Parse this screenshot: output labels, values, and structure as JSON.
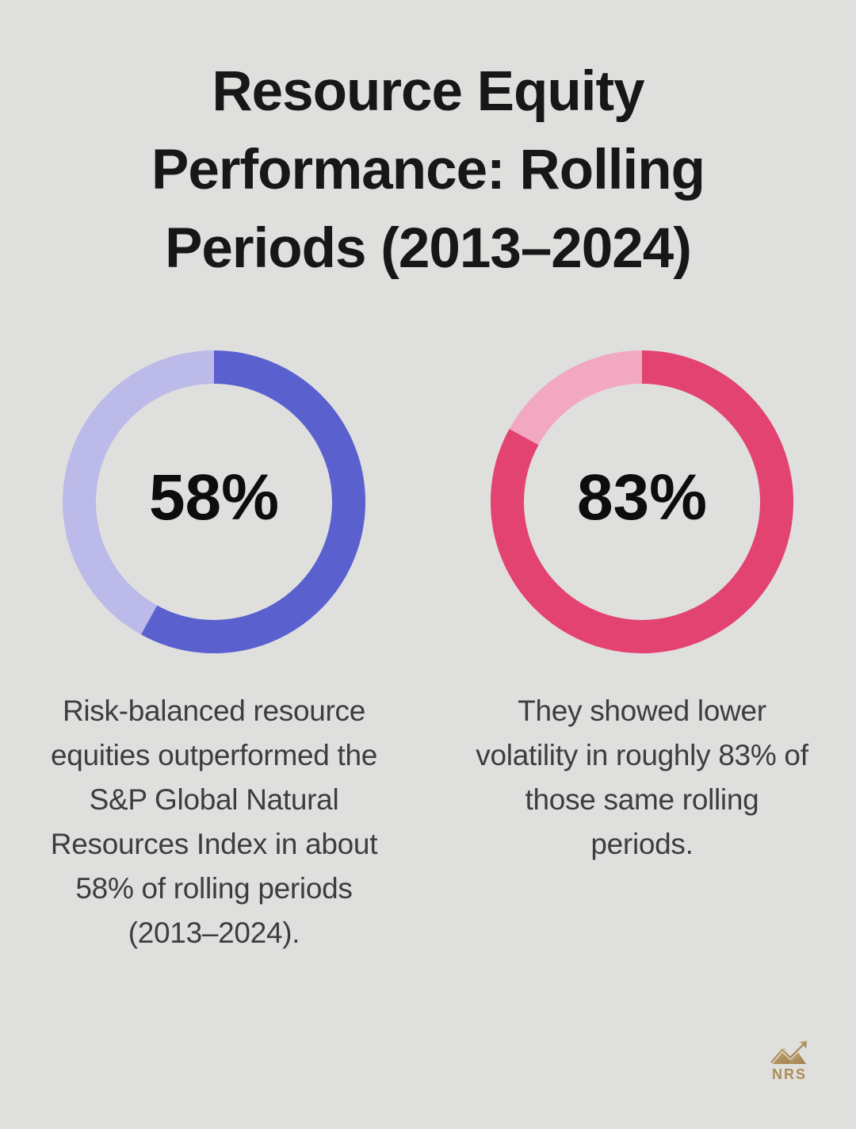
{
  "page": {
    "background_color": "#dfe0de"
  },
  "header": {
    "title_lines": [
      "Resource Equity",
      "Performance: Rolling",
      "Periods (2013–2024)"
    ]
  },
  "chart_data": [
    {
      "type": "pie",
      "subtype": "donut",
      "label": "58%",
      "value_pct": 58,
      "remainder_pct": 42,
      "fill_color": "#5a61ce",
      "track_color": "#bcbae9",
      "start_angle": "top",
      "direction": "clockwise",
      "caption_lines": [
        "Risk-balanced resource",
        "equities outperformed the",
        "S&P Global Natural",
        "Resources Index in about",
        "58% of rolling periods",
        "(2013–2024)."
      ]
    },
    {
      "type": "pie",
      "subtype": "donut",
      "label": "83%",
      "value_pct": 83,
      "remainder_pct": 17,
      "fill_color": "#e24371",
      "track_color": "#f3a8c2",
      "start_angle": "top",
      "direction": "clockwise",
      "caption_lines": [
        "They showed lower",
        "volatility in roughly 83% of",
        "those same rolling",
        "periods."
      ]
    }
  ],
  "footer": {
    "logo_text": "NRS",
    "logo_color": "#ac8c56",
    "logo_gold_light": "#c9ab72",
    "logo_gold_dark": "#9a7c4b",
    "logo_icon": "mountains-with-arrow-icon"
  }
}
